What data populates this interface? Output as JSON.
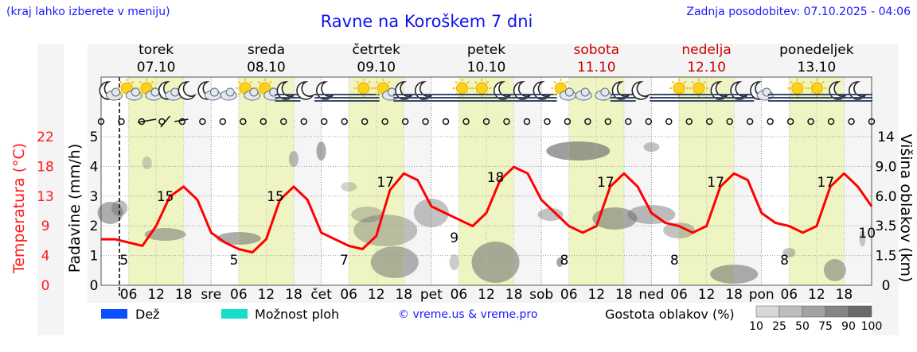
{
  "header": {
    "top_note": "(kraj lahko izberete v meniju)",
    "title": "Ravne na Koroškem 7 dni",
    "updated": "Zadnja posodobitev: 07.10.2025 - 04:06"
  },
  "days": [
    {
      "name": "torek",
      "date": "07.10",
      "color": "#000000"
    },
    {
      "name": "sreda",
      "date": "08.10",
      "color": "#000000"
    },
    {
      "name": "četrtek",
      "date": "09.10",
      "color": "#000000"
    },
    {
      "name": "petek",
      "date": "10.10",
      "color": "#000000"
    },
    {
      "name": "sobota",
      "date": "11.10",
      "color": "#cc0000"
    },
    {
      "name": "nedelja",
      "date": "12.10",
      "color": "#cc0000"
    },
    {
      "name": "ponedeljek",
      "date": "13.10",
      "color": "#000000"
    }
  ],
  "weather_icons": [
    "moon-cloud-icon",
    "sun-cloud-icon",
    "sun-cloud-icon",
    "moon-cloud-icon",
    "moon-icon",
    "moon-cloud-icon",
    "cloud-icon",
    "sun-cloud-icon",
    "sun-cloud-icon",
    "moon-fog-icon",
    "moon-icon",
    "moon-fog-icon",
    "fog-icon",
    "sun-fog-icon",
    "sun-cloud-icon",
    "moon-fog-icon",
    "moon-fog-icon",
    "fog-icon",
    "sun-fog-icon",
    "sun-fog-icon",
    "moon-fog-icon",
    "moon-fog-icon",
    "moon-fog-icon",
    "sun-cloud-icon",
    "cloud-icon",
    "cloud-icon",
    "moon-fog-icon",
    "moon-icon",
    "fog-icon",
    "sun-fog-icon",
    "sun-fog-icon",
    "moon-fog-icon",
    "moon-fog-icon",
    "moon-cloud-icon",
    "fog-icon",
    "sun-fog-icon",
    "sun-fog-icon",
    "moon-fog-icon",
    "moon-fog-icon"
  ],
  "axes": {
    "left_title": "Temperatura (°C)",
    "precip_title": "Padavine (mm/h)",
    "right_title": "Višina oblakov (km)",
    "temp_ticks": [
      "22",
      "18",
      "13",
      "9",
      "4",
      "0"
    ],
    "precip_ticks": [
      "5",
      "4",
      "3",
      "2",
      "1",
      "0"
    ],
    "cloud_ticks": [
      "14",
      "9.0",
      "6.0",
      "3.5",
      "1.5",
      "0"
    ],
    "hour_labels": [
      "06",
      "12",
      "18",
      "sre",
      "06",
      "12",
      "18",
      "čet",
      "06",
      "12",
      "18",
      "pet",
      "06",
      "12",
      "18",
      "sob",
      "06",
      "12",
      "18",
      "ned",
      "06",
      "12",
      "18",
      "pon",
      "06",
      "12",
      "18"
    ]
  },
  "legend": {
    "rain": "Dež",
    "storm": "Možnost ploh",
    "credit": "© vreme.us & vreme.pro",
    "density_title": "Gostota oblakov (%)",
    "density_ticks": [
      "10",
      "25",
      "50",
      "75",
      "90",
      "100"
    ]
  },
  "colors": {
    "rain": "#0a50ff",
    "storm": "#16dcc8",
    "temp": "#ff0000",
    "daylight": "#eef5c2"
  },
  "chart_data": {
    "type": "line",
    "title": "Ravne na Koroškem 7 dni",
    "xlabel": "",
    "ylabel": "Temperatura (°C)",
    "x": [
      3,
      6,
      9,
      12,
      15,
      18,
      21,
      24,
      27,
      30,
      33,
      36,
      39,
      42,
      45,
      48,
      51,
      54,
      57,
      60,
      63,
      66,
      69,
      72,
      75,
      78,
      81,
      84,
      87,
      90,
      93,
      96,
      99,
      102,
      105,
      108,
      111,
      114,
      117,
      120,
      123,
      126,
      129,
      132,
      135,
      138,
      141,
      144,
      147,
      150,
      153,
      156,
      159,
      162,
      165,
      168
    ],
    "series": [
      {
        "values": [
          7,
          6.5,
          6,
          9,
          13.5,
          15,
          13,
          8,
          6.5,
          5.5,
          5,
          7,
          13,
          15,
          13,
          8,
          7,
          6,
          5.5,
          7.5,
          14.5,
          17,
          16,
          12,
          11,
          10,
          9,
          11,
          16,
          18,
          17,
          13,
          11,
          9,
          8,
          9,
          15,
          17,
          15,
          11,
          9.5,
          9,
          8,
          9,
          15,
          17,
          16,
          11,
          9.5,
          9,
          8,
          9,
          15,
          17,
          15,
          12
        ]
      }
    ],
    "ylim": [
      0,
      26
    ],
    "temp_labels": [
      {
        "x": 14,
        "value": "15"
      },
      {
        "x": 38,
        "value": "15"
      },
      {
        "x": 62,
        "value": "17"
      },
      {
        "x": 86,
        "value": "18"
      },
      {
        "x": 110,
        "value": "17"
      },
      {
        "x": 134,
        "value": "17"
      },
      {
        "x": 158,
        "value": "17"
      },
      {
        "x": 5,
        "value": "5"
      },
      {
        "x": 29,
        "value": "5"
      },
      {
        "x": 53,
        "value": "7"
      },
      {
        "x": 77,
        "value": "9"
      },
      {
        "x": 101,
        "value": "8"
      },
      {
        "x": 125,
        "value": "8"
      },
      {
        "x": 149,
        "value": "8"
      },
      {
        "x": 167,
        "value": "10"
      }
    ],
    "wind_indicators": 39
  }
}
